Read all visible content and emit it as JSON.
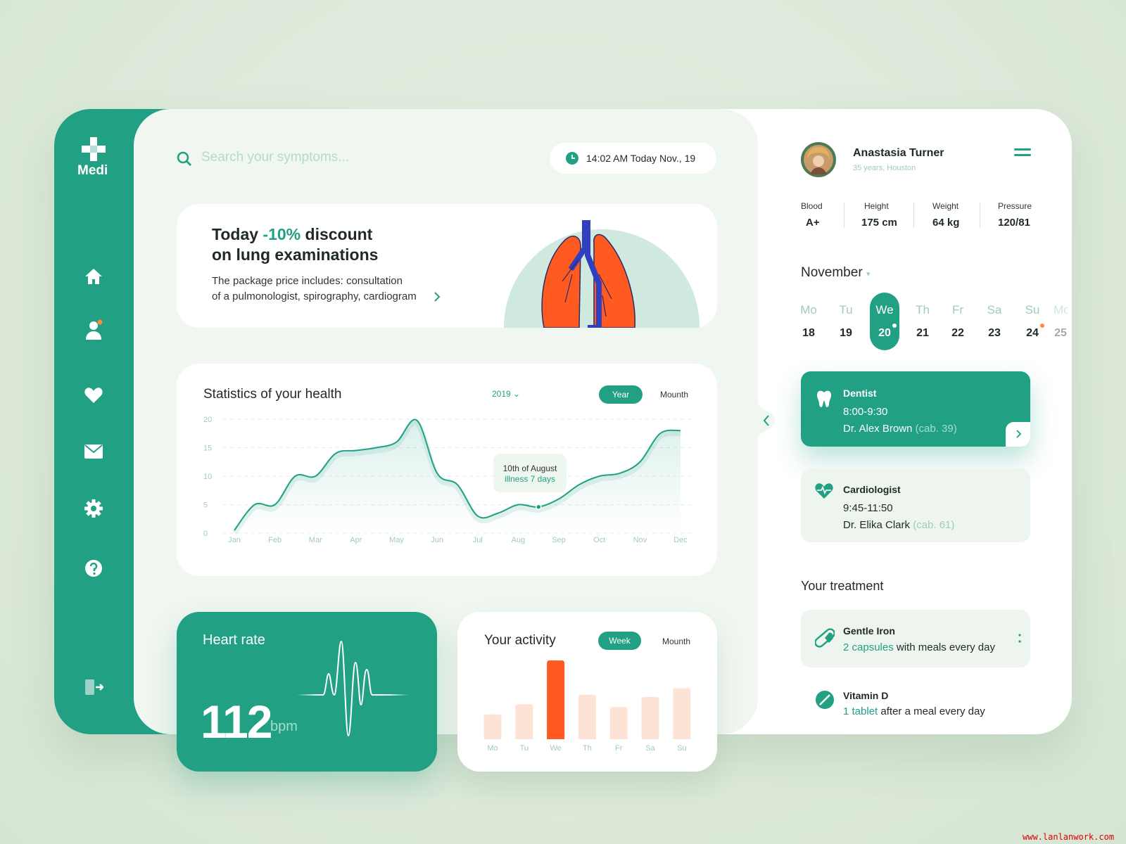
{
  "sidebar": {
    "logo": "Medi"
  },
  "search": {
    "placeholder": "Search your symptoms..."
  },
  "datetime": "14:02 AM Today Nov., 19",
  "promo": {
    "title_parts": [
      "Today",
      "-10%",
      "discount"
    ],
    "title_line2": "on lung examinations",
    "text_line1": "The package price includes: consultation",
    "text_line2": "of a pulmonologist, spirography, cardiogram"
  },
  "health_chart": {
    "type": "line",
    "title": "Statistics of your health",
    "year": "2019",
    "tabs": [
      "Year",
      "Mounth"
    ],
    "categories": [
      "Jan",
      null,
      "Feb",
      null,
      "Mar",
      null,
      "Apr",
      null,
      "May",
      null,
      "Jun",
      null,
      "Jul",
      null,
      "Aug",
      null,
      "Sep",
      null,
      "Oct",
      null,
      "Nov",
      null,
      "Dec"
    ],
    "values": [
      0.5,
      5,
      5,
      10,
      10,
      14,
      14.5,
      15,
      16,
      19.8,
      10.5,
      8.5,
      3,
      3.5,
      5,
      4.6,
      6,
      8.5,
      10,
      10.5,
      12.5,
      17.5,
      18
    ],
    "ylim": [
      0,
      20
    ],
    "yticks": [
      0,
      5,
      10,
      15,
      20
    ],
    "grid": true,
    "color": "#21a084",
    "annotation": {
      "title": "10th of August",
      "text": "illness 7 days"
    }
  },
  "heart_rate": {
    "title": "Heart rate",
    "value": "112",
    "unit": "bpm"
  },
  "activity_chart": {
    "type": "bar",
    "title": "Your activity",
    "tabs": [
      "Week",
      "Mounth"
    ],
    "categories": [
      "Mo",
      "Tu",
      "We",
      "Th",
      "Fr",
      "Sa",
      "Su"
    ],
    "values": [
      34,
      48,
      108,
      61,
      44,
      58,
      70
    ],
    "color": "#fde3d5",
    "highlight": "We",
    "highlight_color": "#ff5a1f"
  },
  "profile": {
    "name": "Anastasia Turner",
    "subtitle": "35 years, Houston",
    "stats": [
      {
        "label": "Blood",
        "value": "A+"
      },
      {
        "label": "Height",
        "value": "175 cm"
      },
      {
        "label": "Weight",
        "value": "64 kg"
      },
      {
        "label": "Pressure",
        "value": "120/81"
      }
    ]
  },
  "calendar": {
    "month": "November",
    "days": [
      {
        "dow": "Mo",
        "date": "18"
      },
      {
        "dow": "Tu",
        "date": "19"
      },
      {
        "dow": "We",
        "date": "20"
      },
      {
        "dow": "Th",
        "date": "21"
      },
      {
        "dow": "Fr",
        "date": "22"
      },
      {
        "dow": "Sa",
        "date": "23"
      },
      {
        "dow": "Su",
        "date": "24"
      },
      {
        "dow": "Mo",
        "date": "25"
      }
    ],
    "selected_date": "20"
  },
  "appointments": [
    {
      "title": "Dentist",
      "time": "8:00-9:30",
      "doctor": "Dr. Alex Brown",
      "room": "(cab. 39)"
    },
    {
      "title": "Cardiologist",
      "time": "9:45-11:50",
      "doctor": "Dr. Elika Clark",
      "room": "(cab. 61)"
    }
  ],
  "treatment": {
    "title": "Your treatment",
    "items": [
      {
        "name": "Gentle Iron",
        "dose": "2 capsules",
        "text": "with meals every day"
      },
      {
        "name": "Vitamin D",
        "dose": "1 tablet",
        "text": "after a meal every day"
      }
    ]
  },
  "watermark": "www.lanlanwork.com"
}
